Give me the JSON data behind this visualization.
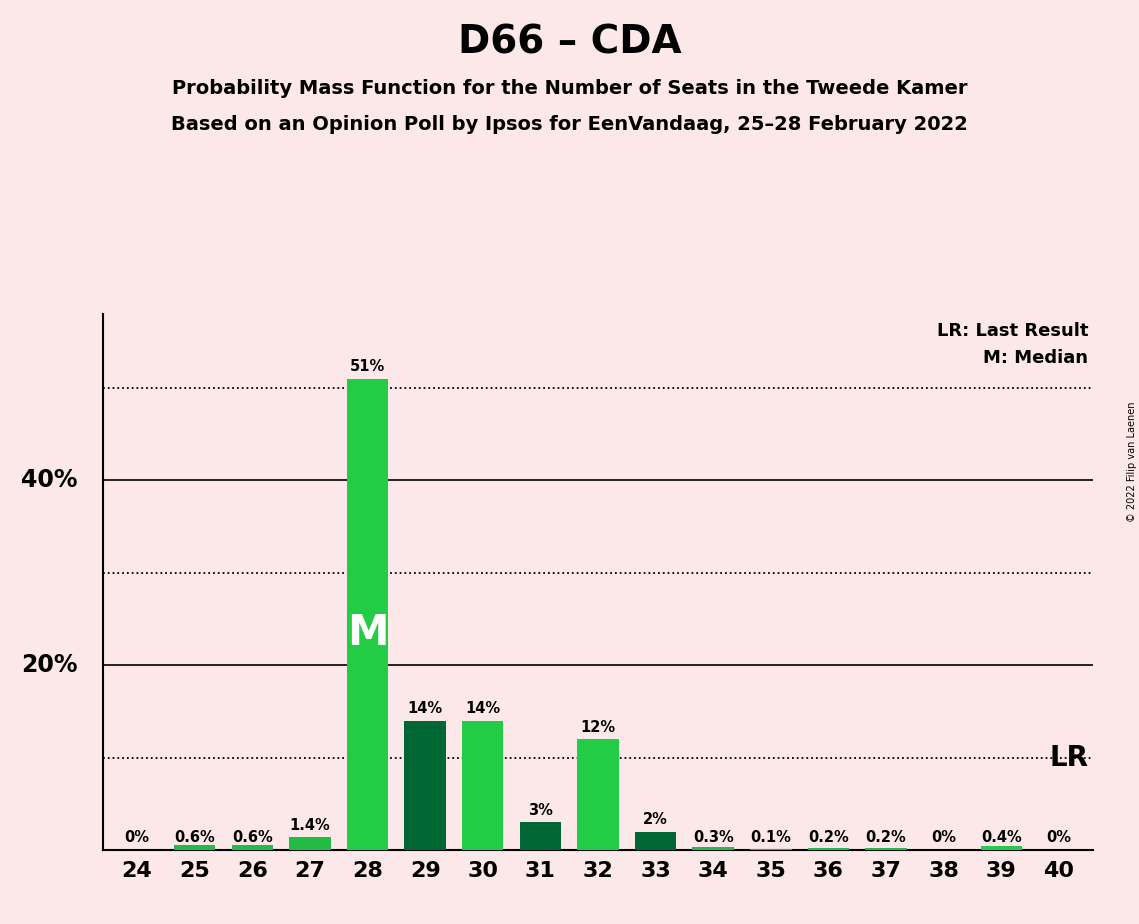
{
  "title": "D66 – CDA",
  "subtitle1": "Probability Mass Function for the Number of Seats in the Tweede Kamer",
  "subtitle2": "Based on an Opinion Poll by Ipsos for EenVandaag, 25–28 February 2022",
  "copyright": "© 2022 Filip van Laenen",
  "categories": [
    24,
    25,
    26,
    27,
    28,
    29,
    30,
    31,
    32,
    33,
    34,
    35,
    36,
    37,
    38,
    39,
    40
  ],
  "values": [
    0.0,
    0.6,
    0.6,
    1.4,
    51.0,
    14.0,
    14.0,
    3.0,
    12.0,
    2.0,
    0.3,
    0.1,
    0.2,
    0.2,
    0.0,
    0.4,
    0.0
  ],
  "labels": [
    "0%",
    "0.6%",
    "0.6%",
    "1.4%",
    "51%",
    "14%",
    "14%",
    "3%",
    "12%",
    "2%",
    "0.3%",
    "0.1%",
    "0.2%",
    "0.2%",
    "0%",
    "0.4%",
    "0%"
  ],
  "bar_colors": [
    "#22bb44",
    "#22bb44",
    "#22bb44",
    "#22bb44",
    "#22cc44",
    "#006633",
    "#22cc44",
    "#006633",
    "#22cc44",
    "#006633",
    "#22bb44",
    "#22bb44",
    "#22bb44",
    "#22bb44",
    "#22bb44",
    "#22cc44",
    "#22bb44"
  ],
  "median_bar": 28,
  "lr_value": 10.0,
  "background_color": "#fce8e8",
  "ylim": [
    0,
    58
  ],
  "legend_lr": "LR: Last Result",
  "legend_m": "M: Median",
  "lr_label": "LR",
  "m_label": "M"
}
